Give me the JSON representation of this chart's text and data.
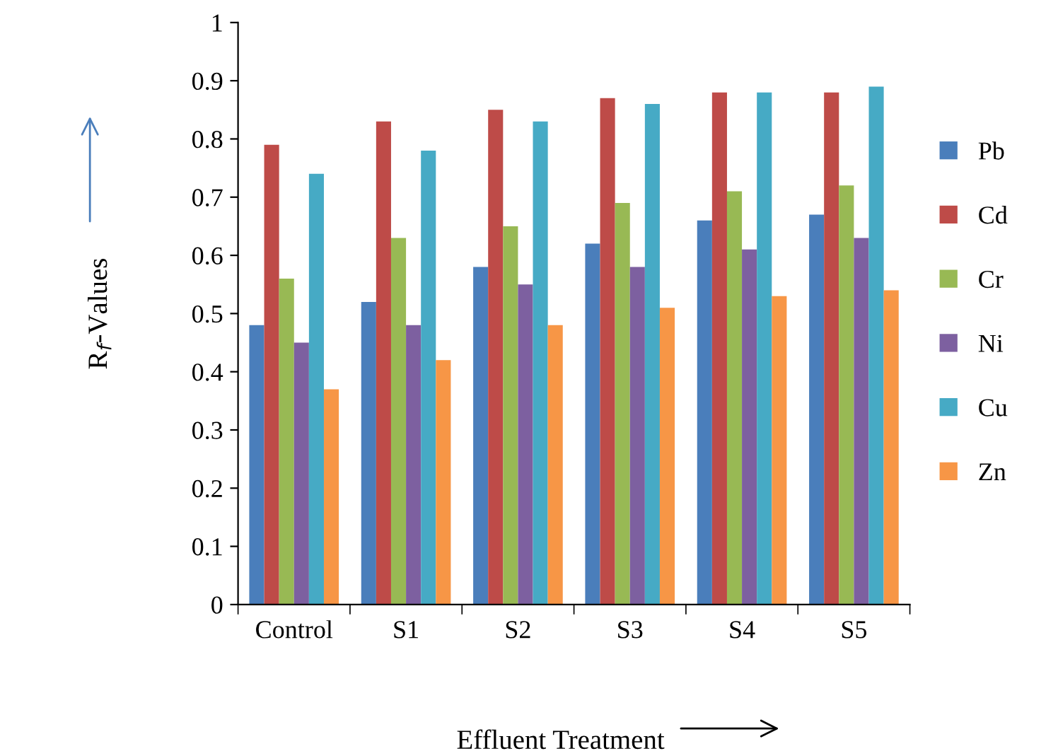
{
  "chart_data": {
    "type": "bar",
    "xlabel": "Effluent Treatment",
    "ylabel": "R$_{f}$-Values",
    "categories": [
      "Control",
      "S1",
      "S2",
      "S3",
      "S4",
      "S5"
    ],
    "series": [
      {
        "name": "Pb",
        "color": "#4a7ebb",
        "values": [
          0.48,
          0.52,
          0.58,
          0.62,
          0.66,
          0.67
        ]
      },
      {
        "name": "Cd",
        "color": "#be4b48",
        "values": [
          0.79,
          0.83,
          0.85,
          0.87,
          0.88,
          0.88
        ]
      },
      {
        "name": "Cr",
        "color": "#98b954",
        "values": [
          0.56,
          0.63,
          0.65,
          0.69,
          0.71,
          0.72
        ]
      },
      {
        "name": "Ni",
        "color": "#7d60a0",
        "values": [
          0.45,
          0.48,
          0.55,
          0.58,
          0.61,
          0.63
        ]
      },
      {
        "name": "Cu",
        "color": "#46aac5",
        "values": [
          0.74,
          0.78,
          0.83,
          0.86,
          0.88,
          0.89
        ]
      },
      {
        "name": "Zn",
        "color": "#f79646",
        "values": [
          0.37,
          0.42,
          0.48,
          0.51,
          0.53,
          0.54
        ]
      }
    ],
    "ylim": [
      0,
      1
    ],
    "yticks": [
      0,
      0.1,
      0.2,
      0.3,
      0.4,
      0.5,
      0.6,
      0.7,
      0.8,
      0.9,
      1
    ],
    "grid": false,
    "legend": "right"
  }
}
